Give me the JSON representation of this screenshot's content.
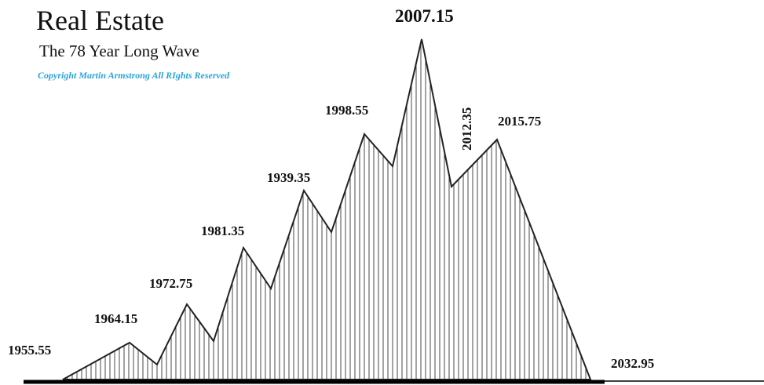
{
  "title": "Real Estate",
  "subtitle": "The 78 Year Long Wave",
  "copyright": "Copyright Martin Armstrong All RIghts Reserved",
  "labels": [
    "1955.55",
    "1964.15",
    "1972.75",
    "1981.35",
    "1939.35",
    "1998.55",
    "2007.15",
    "2012.35",
    "2015.75",
    "2032.95"
  ]
}
